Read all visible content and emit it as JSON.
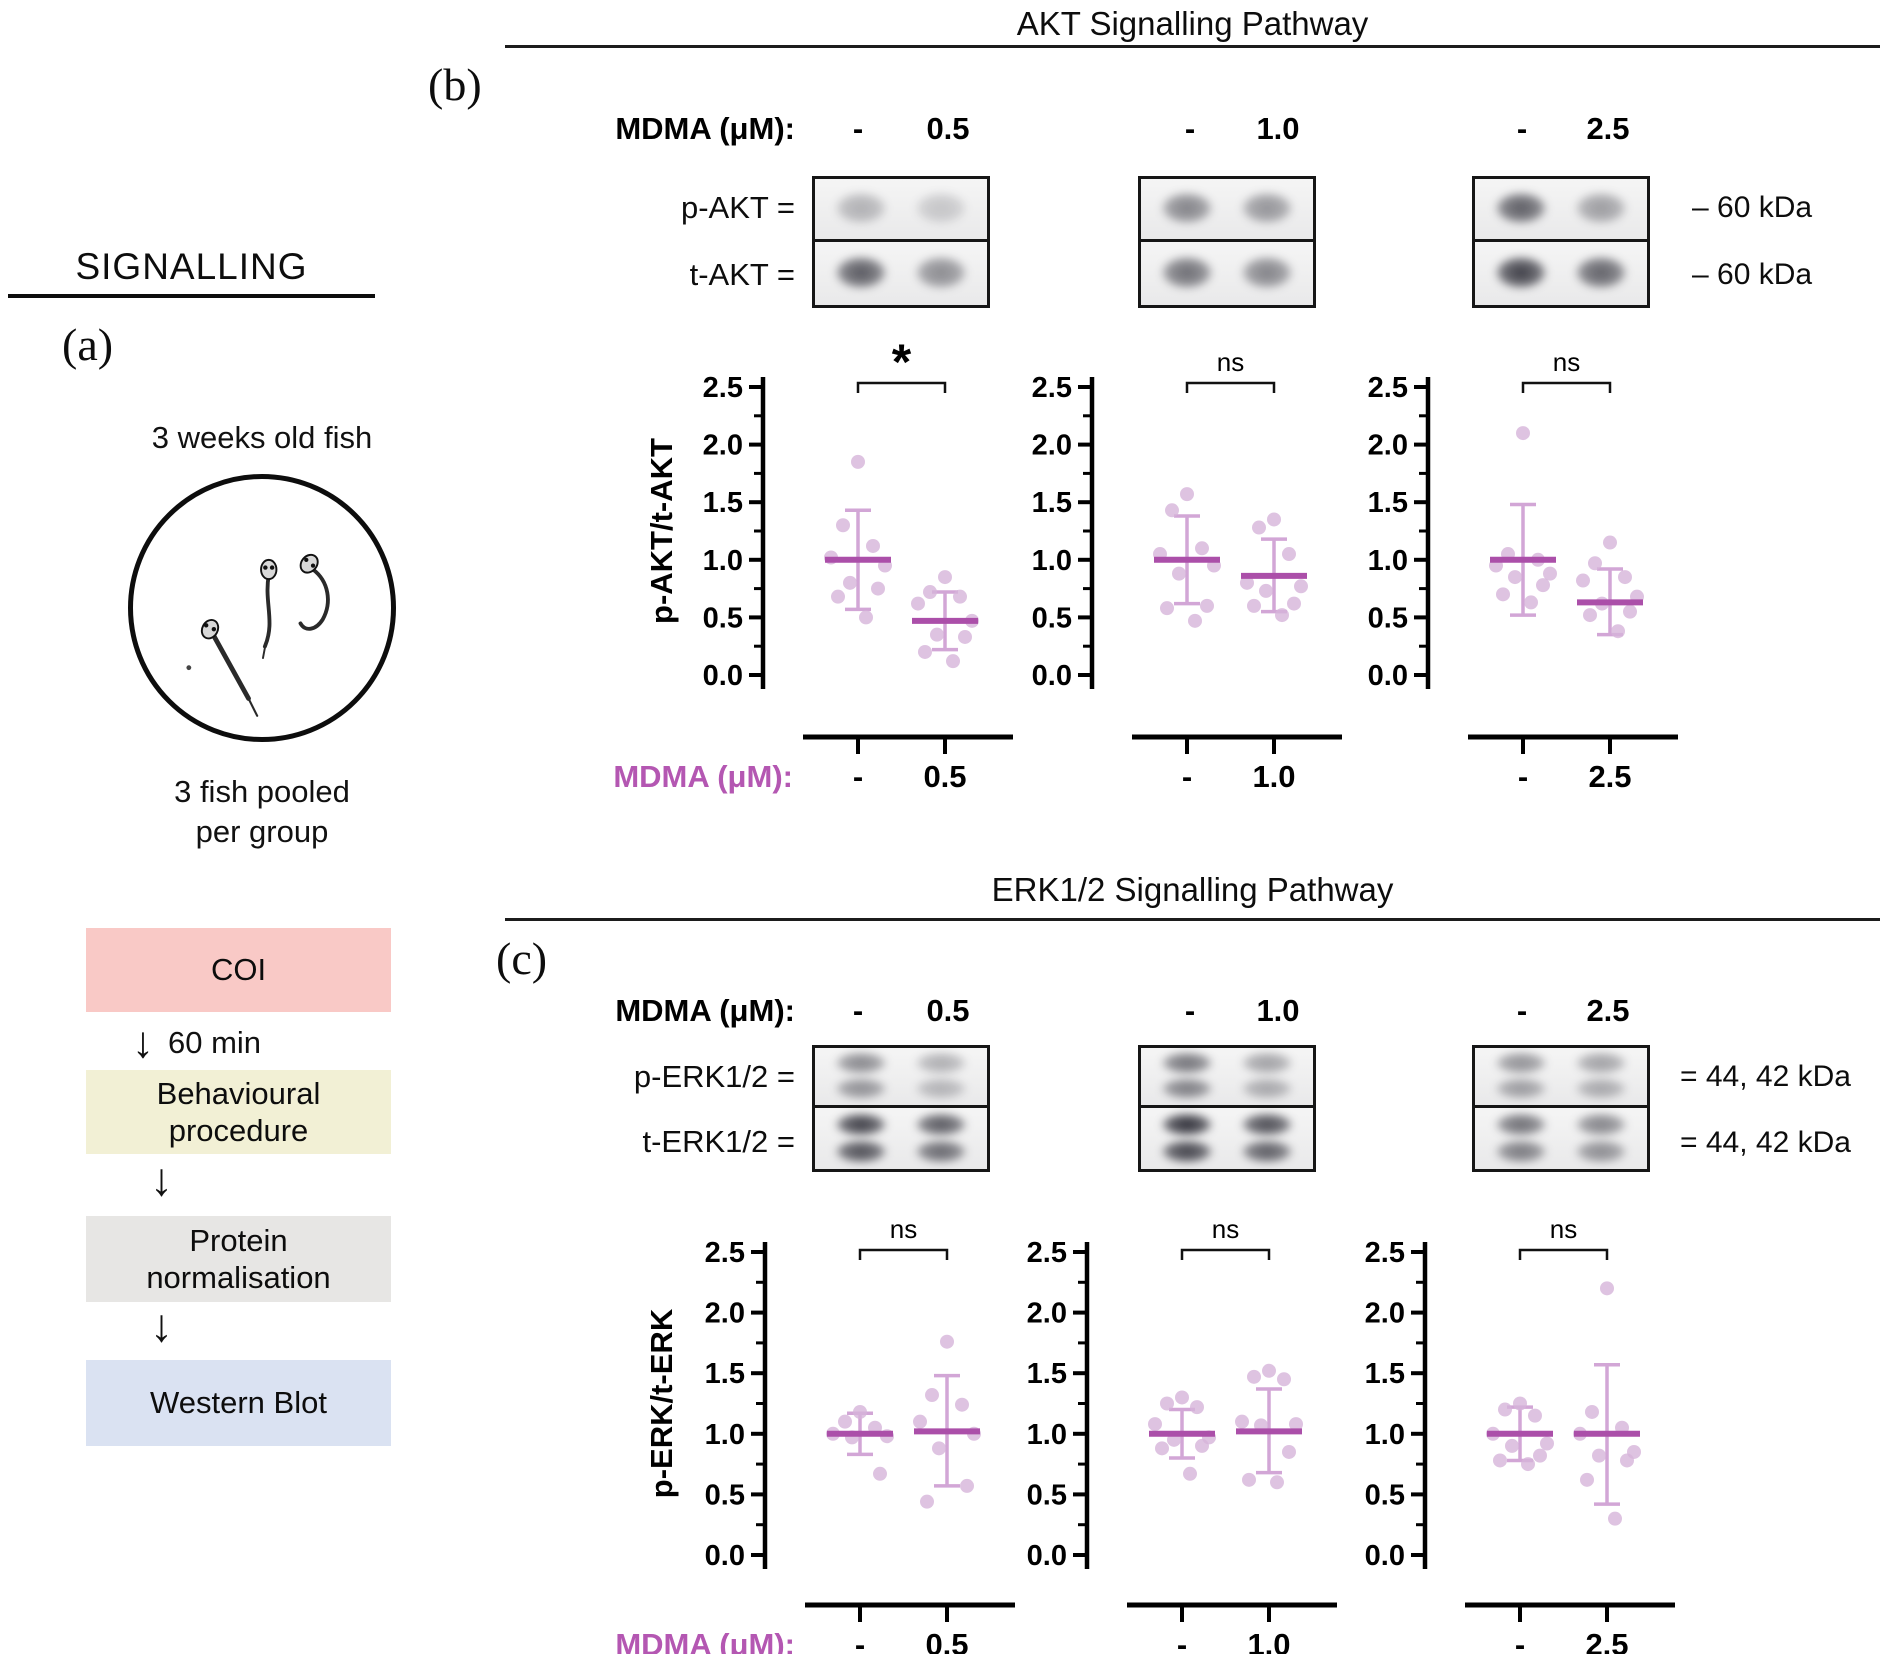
{
  "colors": {
    "point": "#d6b4da",
    "mean_line": "#ab4fa9",
    "error_bar": "#d2a6d6",
    "axis_accent": "#b457b2",
    "coi_box": "#f9c9c6",
    "behaviour_box": "#f2f0d5",
    "protein_box": "#e7e6e4",
    "western_box": "#dae2f2"
  },
  "panel_a": {
    "label": "(a)",
    "title": "SIGNALLING",
    "fish_caption": "3 weeks old fish",
    "pool_caption": "3 fish pooled\nper group",
    "flow": {
      "arrow_glyph": "↓",
      "arrow1_text": "60 min",
      "steps": [
        {
          "label": "COI"
        },
        {
          "label": "Behavioural\nprocedure"
        },
        {
          "label": "Protein\nnormalisation"
        },
        {
          "label": "Western Blot"
        }
      ]
    }
  },
  "panel_b": {
    "label": "(b)",
    "title": "AKT Signalling Pathway",
    "header_label": "MDMA (μM):",
    "columns": [
      {
        "minus": "-",
        "dose": "0.5"
      },
      {
        "minus": "-",
        "dose": "1.0"
      },
      {
        "minus": "-",
        "dose": "2.5"
      }
    ],
    "rows": [
      {
        "label": "p-AKT ="
      },
      {
        "label": "t-AKT ="
      }
    ],
    "kda_labels": [
      "– 60 kDa",
      "– 60 kDa"
    ],
    "band_type": "single",
    "blots": [
      {
        "p_lanes": [
          0.3,
          0.2
        ],
        "t_lanes": [
          0.72,
          0.48
        ]
      },
      {
        "p_lanes": [
          0.52,
          0.44
        ],
        "t_lanes": [
          0.62,
          0.52
        ]
      },
      {
        "p_lanes": [
          0.7,
          0.4
        ],
        "t_lanes": [
          0.85,
          0.68
        ]
      }
    ]
  },
  "panel_c": {
    "label": "(c)",
    "title": "ERK1/2 Signalling Pathway",
    "header_label": "MDMA (μM):",
    "columns": [
      {
        "minus": "-",
        "dose": "0.5"
      },
      {
        "minus": "-",
        "dose": "1.0"
      },
      {
        "minus": "-",
        "dose": "2.5"
      }
    ],
    "rows": [
      {
        "label": "p-ERK1/2 ="
      },
      {
        "label": "t-ERK1/2 ="
      }
    ],
    "kda_labels": [
      "= 44, 42 kDa",
      "= 44, 42 kDa"
    ],
    "band_type": "doublet",
    "blots": [
      {
        "p_lanes": [
          0.5,
          0.32
        ],
        "t_lanes": [
          0.85,
          0.72
        ]
      },
      {
        "p_lanes": [
          0.6,
          0.38
        ],
        "t_lanes": [
          0.92,
          0.78
        ]
      },
      {
        "p_lanes": [
          0.45,
          0.38
        ],
        "t_lanes": [
          0.62,
          0.52
        ]
      }
    ]
  },
  "chart_data": [
    {
      "id": "akt-0.5",
      "type": "scatter",
      "ylabel": "p-AKT/t-AKT",
      "xlabel": "MDMA (μM):",
      "ylim": [
        0,
        2.5
      ],
      "yticks": [
        0.0,
        0.5,
        1.0,
        1.5,
        2.0,
        2.5
      ],
      "significance": "*",
      "groups": [
        {
          "label": "-",
          "values": [
            1.85,
            1.3,
            1.12,
            1.02,
            0.95,
            0.8,
            0.75,
            0.68,
            0.5
          ],
          "mean": 1.0,
          "err_low": 0.57,
          "err_high": 1.43
        },
        {
          "label": "0.5",
          "values": [
            0.85,
            0.72,
            0.68,
            0.62,
            0.47,
            0.35,
            0.33,
            0.2,
            0.12
          ],
          "mean": 0.47,
          "err_low": 0.22,
          "err_high": 0.72
        }
      ]
    },
    {
      "id": "akt-1.0",
      "type": "scatter",
      "ylim": [
        0,
        2.5
      ],
      "yticks": [
        0.0,
        0.5,
        1.0,
        1.5,
        2.0,
        2.5
      ],
      "significance": "ns",
      "groups": [
        {
          "label": "-",
          "values": [
            1.57,
            1.43,
            1.1,
            1.05,
            0.95,
            0.88,
            0.6,
            0.58,
            0.47
          ],
          "mean": 1.0,
          "err_low": 0.62,
          "err_high": 1.38
        },
        {
          "label": "1.0",
          "values": [
            1.35,
            1.28,
            1.05,
            0.8,
            0.77,
            0.73,
            0.62,
            0.6,
            0.52
          ],
          "mean": 0.86,
          "err_low": 0.55,
          "err_high": 1.18
        }
      ]
    },
    {
      "id": "akt-2.5",
      "type": "scatter",
      "ylim": [
        0,
        2.5
      ],
      "yticks": [
        0.0,
        0.5,
        1.0,
        1.5,
        2.0,
        2.5
      ],
      "significance": "ns",
      "groups": [
        {
          "label": "-",
          "values": [
            2.1,
            1.05,
            1.0,
            0.95,
            0.88,
            0.85,
            0.78,
            0.7,
            0.63
          ],
          "mean": 1.0,
          "err_low": 0.52,
          "err_high": 1.48
        },
        {
          "label": "2.5",
          "values": [
            1.15,
            0.97,
            0.85,
            0.82,
            0.68,
            0.62,
            0.55,
            0.52,
            0.38
          ],
          "mean": 0.63,
          "err_low": 0.35,
          "err_high": 0.92
        }
      ]
    },
    {
      "id": "erk-0.5",
      "type": "scatter",
      "ylabel": "p-ERK/t-ERK",
      "xlabel": "MDMA (μM):",
      "ylim": [
        0,
        2.5
      ],
      "yticks": [
        0.0,
        0.5,
        1.0,
        1.5,
        2.0,
        2.5
      ],
      "significance": "ns",
      "groups": [
        {
          "label": "-",
          "values": [
            1.18,
            1.1,
            1.05,
            1.0,
            0.98,
            0.97,
            0.67
          ],
          "mean": 1.0,
          "err_low": 0.83,
          "err_high": 1.17
        },
        {
          "label": "0.5",
          "values": [
            1.76,
            1.32,
            1.24,
            1.1,
            1.0,
            0.88,
            0.57,
            0.44
          ],
          "mean": 1.02,
          "err_low": 0.57,
          "err_high": 1.48
        }
      ]
    },
    {
      "id": "erk-1.0",
      "type": "scatter",
      "ylim": [
        0,
        2.5
      ],
      "yticks": [
        0.0,
        0.5,
        1.0,
        1.5,
        2.0,
        2.5
      ],
      "significance": "ns",
      "groups": [
        {
          "label": "-",
          "values": [
            1.3,
            1.25,
            1.22,
            1.08,
            0.97,
            0.95,
            0.9,
            0.88,
            0.67
          ],
          "mean": 1.0,
          "err_low": 0.8,
          "err_high": 1.2
        },
        {
          "label": "1.0",
          "values": [
            1.52,
            1.47,
            1.45,
            1.1,
            1.08,
            1.07,
            0.85,
            0.62,
            0.6
          ],
          "mean": 1.02,
          "err_low": 0.68,
          "err_high": 1.37
        }
      ]
    },
    {
      "id": "erk-2.5",
      "type": "scatter",
      "ylim": [
        0,
        2.5
      ],
      "yticks": [
        0.0,
        0.5,
        1.0,
        1.5,
        2.0,
        2.5
      ],
      "significance": "ns",
      "groups": [
        {
          "label": "-",
          "values": [
            1.25,
            1.2,
            1.15,
            1.0,
            0.92,
            0.9,
            0.82,
            0.78,
            0.75
          ],
          "mean": 1.0,
          "err_low": 0.78,
          "err_high": 1.22
        },
        {
          "label": "2.5",
          "values": [
            2.2,
            1.18,
            1.05,
            1.0,
            0.85,
            0.82,
            0.78,
            0.62,
            0.3
          ],
          "mean": 1.0,
          "err_low": 0.42,
          "err_high": 1.57
        }
      ]
    }
  ]
}
